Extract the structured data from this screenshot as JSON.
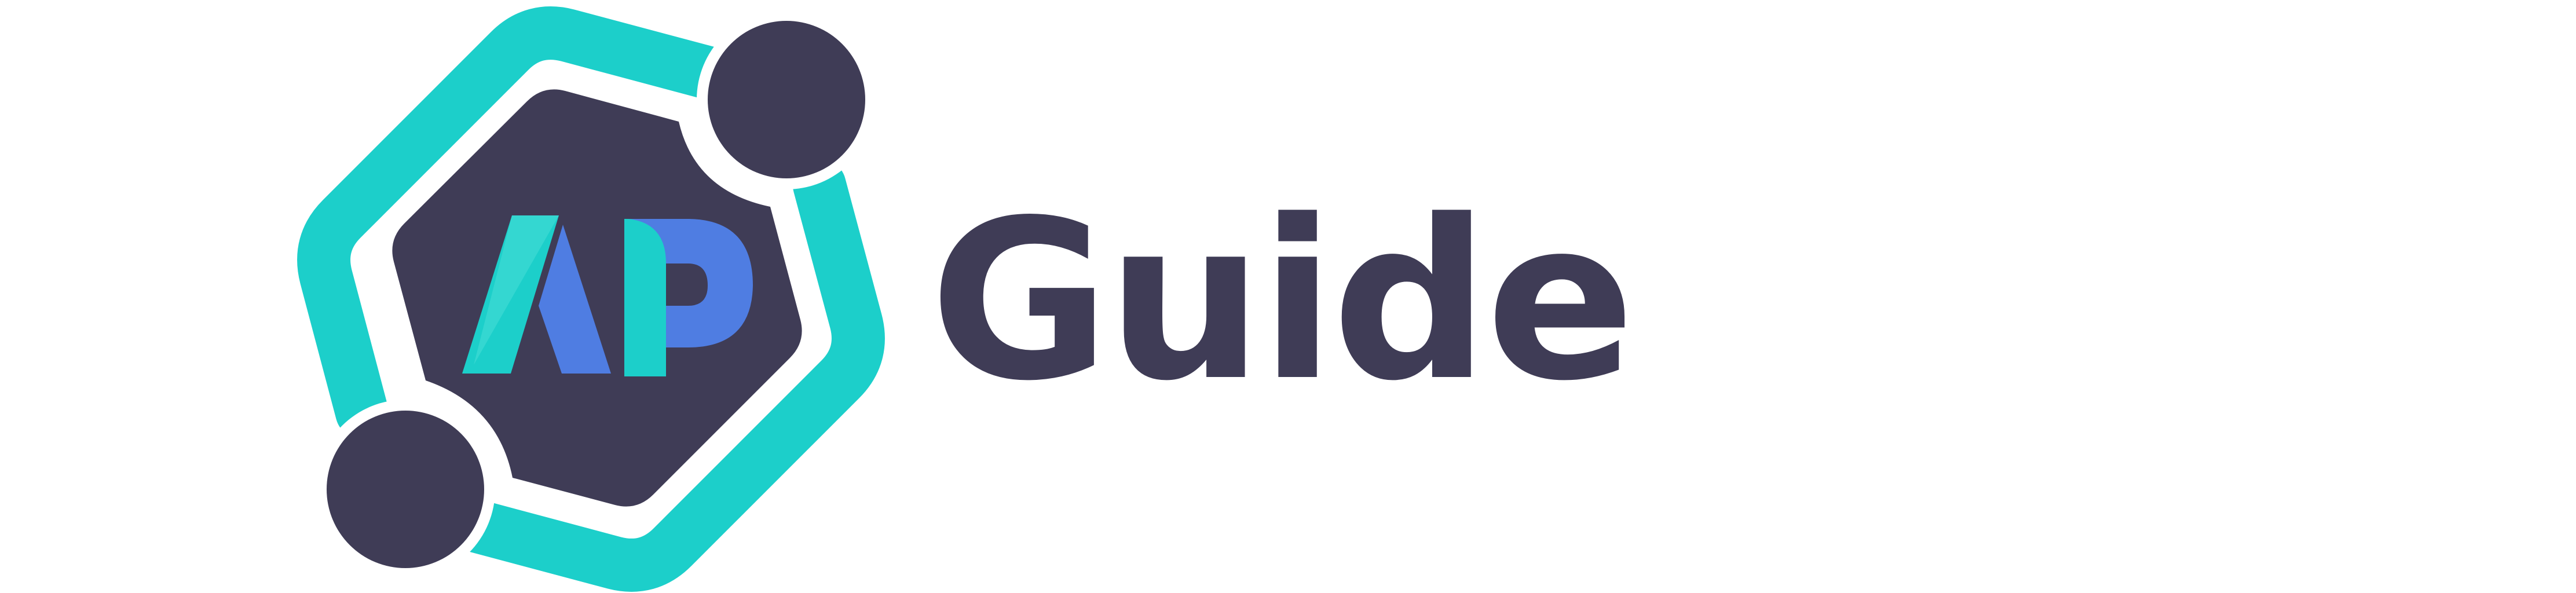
{
  "logo": {
    "letters": "AP",
    "wordmark": "Guide",
    "colors": {
      "teal": "#1ccfca",
      "dark": "#3f3c56",
      "blue": "#4f7de2",
      "background": "#ffffff"
    }
  }
}
